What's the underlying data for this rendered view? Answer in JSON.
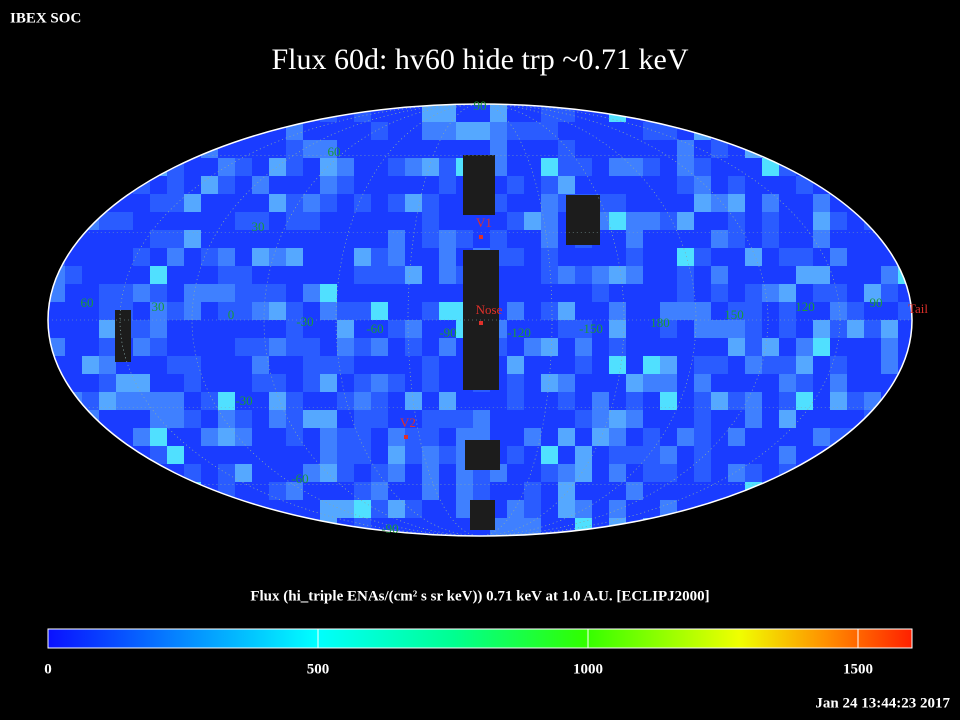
{
  "header": {
    "source": "IBEX SOC",
    "title": "Flux   60d: hv60 hide trp ~0.71 keV"
  },
  "map": {
    "longitude_labels": [
      "60",
      "30",
      "0",
      "-30",
      "-60",
      "-90",
      "-120",
      "-150",
      "180",
      "150",
      "120",
      "90"
    ],
    "latitude_labels": [
      "90",
      "60",
      "30",
      "-30",
      "-60",
      "-90"
    ],
    "markers": [
      "V1",
      "Nose",
      "V2",
      "Tail"
    ]
  },
  "colorbar": {
    "label": "Flux (hi_triple ENAs/(cm² s sr keV))  0.71 keV at 1.0 A.U. [ECLIPJ2000]",
    "lim": [
      0,
      1600
    ],
    "ticks": [
      0,
      500,
      1000,
      1500
    ]
  },
  "footer": {
    "timestamp": "Jan 24 13:44:23 2017"
  }
}
